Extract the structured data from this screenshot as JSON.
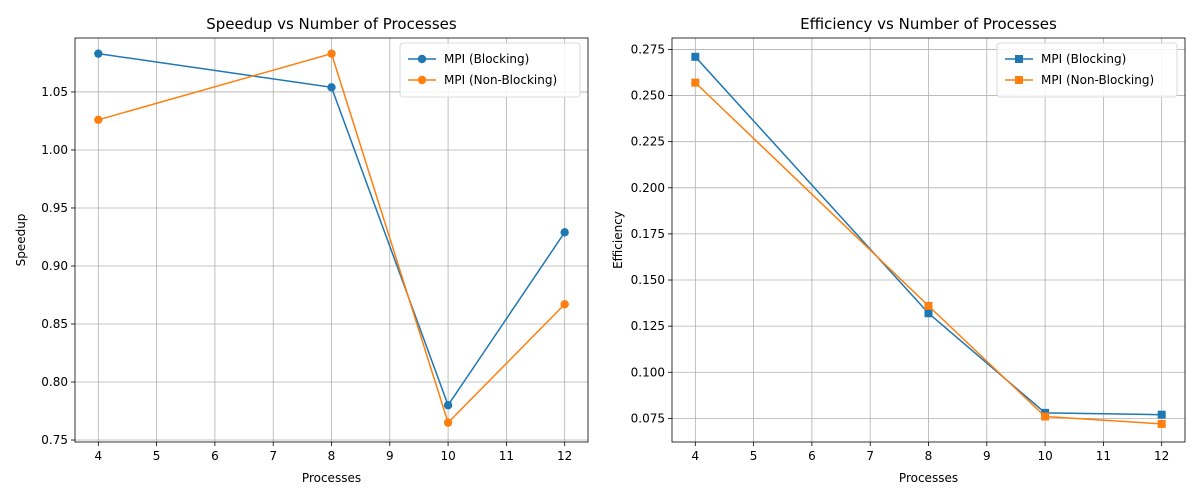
{
  "chart_data": [
    {
      "type": "line",
      "title": "Speedup vs Number of Processes",
      "xlabel": "Processes",
      "ylabel": "Speedup",
      "xlim": [
        3.6,
        12.4
      ],
      "ylim": [
        0.7483,
        1.0965
      ],
      "xticks": [
        4,
        5,
        6,
        7,
        8,
        9,
        10,
        11,
        12
      ],
      "yticks": [
        0.75,
        0.8,
        0.85,
        0.9,
        0.95,
        1.0,
        1.05
      ],
      "ytick_labels": [
        "0.75",
        "0.80",
        "0.85",
        "0.90",
        "0.95",
        "1.00",
        "1.05"
      ],
      "grid": true,
      "legend": "upper right",
      "marker": "circle",
      "x": [
        4,
        8,
        10,
        12
      ],
      "series": [
        {
          "name": "MPI (Blocking)",
          "color": "#1f77b4",
          "values": [
            1.083,
            1.054,
            0.78,
            0.929
          ]
        },
        {
          "name": "MPI (Non-Blocking)",
          "color": "#ff7f0e",
          "values": [
            1.026,
            1.083,
            0.765,
            0.867
          ]
        }
      ]
    },
    {
      "type": "line",
      "title": "Efficiency vs Number of Processes",
      "xlabel": "Processes",
      "ylabel": "Efficiency",
      "xlim": [
        3.6,
        12.4
      ],
      "ylim": [
        0.0622,
        0.2812
      ],
      "xticks": [
        4,
        5,
        6,
        7,
        8,
        9,
        10,
        11,
        12
      ],
      "yticks": [
        0.075,
        0.1,
        0.125,
        0.15,
        0.175,
        0.2,
        0.225,
        0.25,
        0.275
      ],
      "ytick_labels": [
        "0.075",
        "0.100",
        "0.125",
        "0.150",
        "0.175",
        "0.200",
        "0.225",
        "0.250",
        "0.275"
      ],
      "grid": true,
      "legend": "upper right",
      "marker": "square",
      "x": [
        4,
        8,
        10,
        12
      ],
      "series": [
        {
          "name": "MPI (Blocking)",
          "color": "#1f77b4",
          "values": [
            0.271,
            0.132,
            0.078,
            0.077
          ]
        },
        {
          "name": "MPI (Non-Blocking)",
          "color": "#ff7f0e",
          "values": [
            0.257,
            0.136,
            0.076,
            0.072
          ]
        }
      ]
    }
  ]
}
